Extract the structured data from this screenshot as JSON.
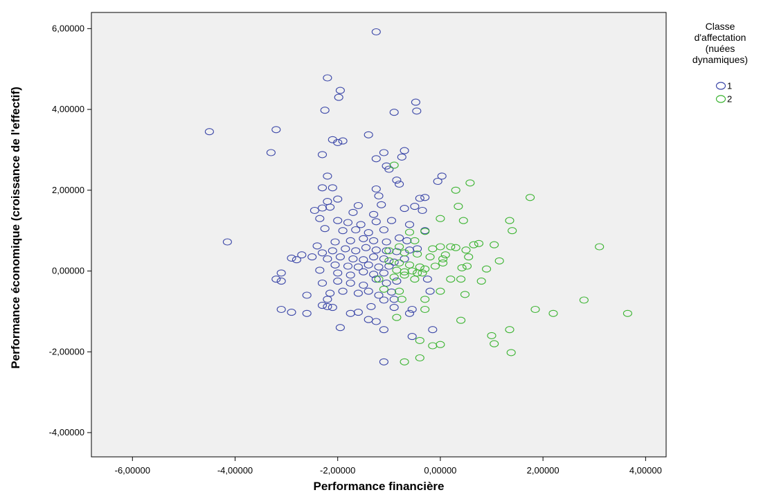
{
  "chart_data": {
    "type": "scatter",
    "xlabel": "Performance financière",
    "ylabel": "Performance économique (croissance de l'effectif)",
    "xlim": [
      -6.8,
      4.4
    ],
    "ylim": [
      -4.6,
      6.4
    ],
    "xticks": [
      -6,
      -4,
      -2,
      0,
      2,
      4
    ],
    "yticks": [
      -4,
      -2,
      0,
      2,
      4,
      6
    ],
    "xtick_labels": [
      "-6,00000",
      "-4,00000",
      "-2,00000",
      "0,00000",
      "2,00000",
      "4,00000"
    ],
    "ytick_labels": [
      "-4,00000",
      "-2,00000",
      "0,00000",
      "2,00000",
      "4,00000",
      "6,00000"
    ],
    "grid": false,
    "plot_background": "#f0f0f0",
    "legend": {
      "title": [
        "Classe",
        "d'affectation",
        "(nuées",
        "dynamiques)"
      ],
      "placement": "right-top"
    },
    "series": [
      {
        "name": "1",
        "color": "#3b47a8",
        "marker": "hollow-circle",
        "points": [
          [
            -1.25,
            5.92
          ],
          [
            -2.2,
            4.78
          ],
          [
            -1.95,
            4.47
          ],
          [
            -1.98,
            4.3
          ],
          [
            -2.25,
            3.98
          ],
          [
            -0.48,
            4.18
          ],
          [
            -0.46,
            3.96
          ],
          [
            -0.9,
            3.93
          ],
          [
            -4.5,
            3.45
          ],
          [
            -3.2,
            3.5
          ],
          [
            -3.3,
            2.93
          ],
          [
            -1.4,
            3.37
          ],
          [
            -2.1,
            3.25
          ],
          [
            -2.0,
            3.18
          ],
          [
            -1.9,
            3.22
          ],
          [
            -1.1,
            2.93
          ],
          [
            -0.7,
            2.98
          ],
          [
            -1.25,
            2.78
          ],
          [
            -0.75,
            2.82
          ],
          [
            -2.3,
            2.88
          ],
          [
            -1.05,
            2.6
          ],
          [
            -1.0,
            2.52
          ],
          [
            -0.85,
            2.25
          ],
          [
            -0.8,
            2.15
          ],
          [
            -0.05,
            2.22
          ],
          [
            0.03,
            2.35
          ],
          [
            -2.2,
            2.35
          ],
          [
            -2.3,
            2.06
          ],
          [
            -2.1,
            2.06
          ],
          [
            -1.25,
            2.03
          ],
          [
            -2.2,
            1.72
          ],
          [
            -2.0,
            1.78
          ],
          [
            -1.6,
            1.62
          ],
          [
            -1.2,
            1.86
          ],
          [
            -1.15,
            1.64
          ],
          [
            -0.4,
            1.8
          ],
          [
            -0.3,
            1.82
          ],
          [
            -0.5,
            1.6
          ],
          [
            -0.35,
            1.5
          ],
          [
            -0.7,
            1.55
          ],
          [
            -2.45,
            1.5
          ],
          [
            -2.3,
            1.56
          ],
          [
            -2.15,
            1.58
          ],
          [
            -1.7,
            1.45
          ],
          [
            -1.3,
            1.4
          ],
          [
            -2.35,
            1.3
          ],
          [
            -2.0,
            1.25
          ],
          [
            -1.8,
            1.2
          ],
          [
            -1.55,
            1.15
          ],
          [
            -1.25,
            1.22
          ],
          [
            -0.95,
            1.25
          ],
          [
            -0.6,
            1.15
          ],
          [
            -2.25,
            1.05
          ],
          [
            -1.9,
            1.0
          ],
          [
            -1.65,
            1.02
          ],
          [
            -1.4,
            0.95
          ],
          [
            -1.1,
            1.02
          ],
          [
            -0.3,
            1.0
          ],
          [
            -4.15,
            0.72
          ],
          [
            -2.4,
            0.62
          ],
          [
            -2.05,
            0.72
          ],
          [
            -1.75,
            0.75
          ],
          [
            -1.5,
            0.8
          ],
          [
            -1.3,
            0.75
          ],
          [
            -1.05,
            0.72
          ],
          [
            -0.8,
            0.82
          ],
          [
            -0.65,
            0.75
          ],
          [
            -2.3,
            0.45
          ],
          [
            -2.1,
            0.5
          ],
          [
            -1.85,
            0.55
          ],
          [
            -1.65,
            0.5
          ],
          [
            -1.45,
            0.58
          ],
          [
            -1.25,
            0.52
          ],
          [
            -1.05,
            0.5
          ],
          [
            -0.85,
            0.48
          ],
          [
            -0.6,
            0.52
          ],
          [
            -0.45,
            0.55
          ],
          [
            -2.9,
            0.32
          ],
          [
            -2.7,
            0.4
          ],
          [
            -2.5,
            0.35
          ],
          [
            -2.2,
            0.3
          ],
          [
            -1.95,
            0.35
          ],
          [
            -1.7,
            0.3
          ],
          [
            -1.5,
            0.28
          ],
          [
            -1.3,
            0.35
          ],
          [
            -1.1,
            0.3
          ],
          [
            -0.9,
            0.22
          ],
          [
            -0.7,
            0.3
          ],
          [
            -2.8,
            0.28
          ],
          [
            -2.05,
            0.15
          ],
          [
            -1.8,
            0.12
          ],
          [
            -1.6,
            0.1
          ],
          [
            -1.4,
            0.15
          ],
          [
            -1.2,
            0.1
          ],
          [
            -1.0,
            0.12
          ],
          [
            -2.35,
            0.02
          ],
          [
            -2.0,
            -0.05
          ],
          [
            -1.75,
            -0.1
          ],
          [
            -1.5,
            -0.02
          ],
          [
            -1.3,
            -0.08
          ],
          [
            -1.1,
            -0.05
          ],
          [
            -3.1,
            -0.05
          ],
          [
            -3.2,
            -0.2
          ],
          [
            -3.1,
            -0.25
          ],
          [
            -2.3,
            -0.3
          ],
          [
            -2.0,
            -0.25
          ],
          [
            -1.75,
            -0.3
          ],
          [
            -1.5,
            -0.35
          ],
          [
            -1.25,
            -0.2
          ],
          [
            -1.05,
            -0.3
          ],
          [
            -0.85,
            -0.25
          ],
          [
            -0.25,
            -0.2
          ],
          [
            -2.15,
            -0.55
          ],
          [
            -1.9,
            -0.5
          ],
          [
            -1.6,
            -0.55
          ],
          [
            -1.4,
            -0.5
          ],
          [
            -1.2,
            -0.6
          ],
          [
            -0.95,
            -0.52
          ],
          [
            -2.6,
            -0.6
          ],
          [
            -2.2,
            -0.7
          ],
          [
            -1.1,
            -0.72
          ],
          [
            -0.9,
            -0.7
          ],
          [
            -2.3,
            -0.85
          ],
          [
            -2.2,
            -0.88
          ],
          [
            -2.1,
            -0.9
          ],
          [
            -1.35,
            -0.88
          ],
          [
            -0.9,
            -0.9
          ],
          [
            -3.1,
            -0.95
          ],
          [
            -2.9,
            -1.02
          ],
          [
            -2.6,
            -1.05
          ],
          [
            -1.75,
            -1.05
          ],
          [
            -1.6,
            -1.02
          ],
          [
            -1.4,
            -1.2
          ],
          [
            -1.25,
            -1.25
          ],
          [
            -0.6,
            -1.05
          ],
          [
            -1.95,
            -1.4
          ],
          [
            -1.1,
            -1.45
          ],
          [
            -0.55,
            -1.62
          ],
          [
            -0.15,
            -1.45
          ],
          [
            -1.1,
            -2.25
          ],
          [
            -0.2,
            -0.5
          ],
          [
            -0.55,
            -0.95
          ]
        ]
      },
      {
        "name": "2",
        "color": "#3cb432",
        "marker": "hollow-circle",
        "points": [
          [
            -0.9,
            2.62
          ],
          [
            0.3,
            2.0
          ],
          [
            0.58,
            2.18
          ],
          [
            1.75,
            1.82
          ],
          [
            0.35,
            1.6
          ],
          [
            0.0,
            1.3
          ],
          [
            0.45,
            1.25
          ],
          [
            1.35,
            1.25
          ],
          [
            1.4,
            1.0
          ],
          [
            -0.6,
            0.96
          ],
          [
            -0.3,
            0.98
          ],
          [
            -0.15,
            0.55
          ],
          [
            0.0,
            0.6
          ],
          [
            0.2,
            0.6
          ],
          [
            0.3,
            0.58
          ],
          [
            0.65,
            0.65
          ],
          [
            0.75,
            0.68
          ],
          [
            1.05,
            0.65
          ],
          [
            0.5,
            0.52
          ],
          [
            -0.5,
            0.75
          ],
          [
            -0.8,
            0.6
          ],
          [
            -1.0,
            0.5
          ],
          [
            -0.7,
            0.45
          ],
          [
            -0.45,
            0.42
          ],
          [
            -0.2,
            0.35
          ],
          [
            0.1,
            0.4
          ],
          [
            0.55,
            0.35
          ],
          [
            0.05,
            0.2
          ],
          [
            1.15,
            0.25
          ],
          [
            3.1,
            0.6
          ],
          [
            -1.0,
            0.25
          ],
          [
            -0.8,
            0.2
          ],
          [
            -0.6,
            0.15
          ],
          [
            -0.4,
            0.1
          ],
          [
            -0.1,
            0.12
          ],
          [
            0.42,
            0.08
          ],
          [
            0.52,
            0.12
          ],
          [
            0.9,
            0.05
          ],
          [
            -0.85,
            0.02
          ],
          [
            -0.7,
            -0.02
          ],
          [
            -0.55,
            0.0
          ],
          [
            -0.35,
            -0.05
          ],
          [
            -0.3,
            0.05
          ],
          [
            -1.2,
            -0.2
          ],
          [
            -0.9,
            -0.15
          ],
          [
            -0.7,
            -0.1
          ],
          [
            -0.5,
            -0.2
          ],
          [
            0.2,
            -0.2
          ],
          [
            0.4,
            -0.2
          ],
          [
            0.8,
            -0.25
          ],
          [
            -1.1,
            -0.45
          ],
          [
            -0.8,
            -0.5
          ],
          [
            0.0,
            -0.5
          ],
          [
            0.48,
            -0.58
          ],
          [
            -0.75,
            -0.7
          ],
          [
            -0.3,
            -0.7
          ],
          [
            2.8,
            -0.72
          ],
          [
            -0.3,
            -0.95
          ],
          [
            -0.85,
            -1.15
          ],
          [
            0.4,
            -1.22
          ],
          [
            1.85,
            -0.95
          ],
          [
            2.2,
            -1.05
          ],
          [
            3.65,
            -1.05
          ],
          [
            1.35,
            -1.45
          ],
          [
            1.0,
            -1.6
          ],
          [
            1.05,
            -1.8
          ],
          [
            0.0,
            -1.82
          ],
          [
            -0.15,
            -1.85
          ],
          [
            -0.4,
            -1.72
          ],
          [
            1.38,
            -2.02
          ],
          [
            -0.7,
            -2.25
          ],
          [
            -0.4,
            -2.15
          ],
          [
            0.05,
            0.3
          ],
          [
            -0.45,
            -0.05
          ]
        ]
      }
    ]
  }
}
